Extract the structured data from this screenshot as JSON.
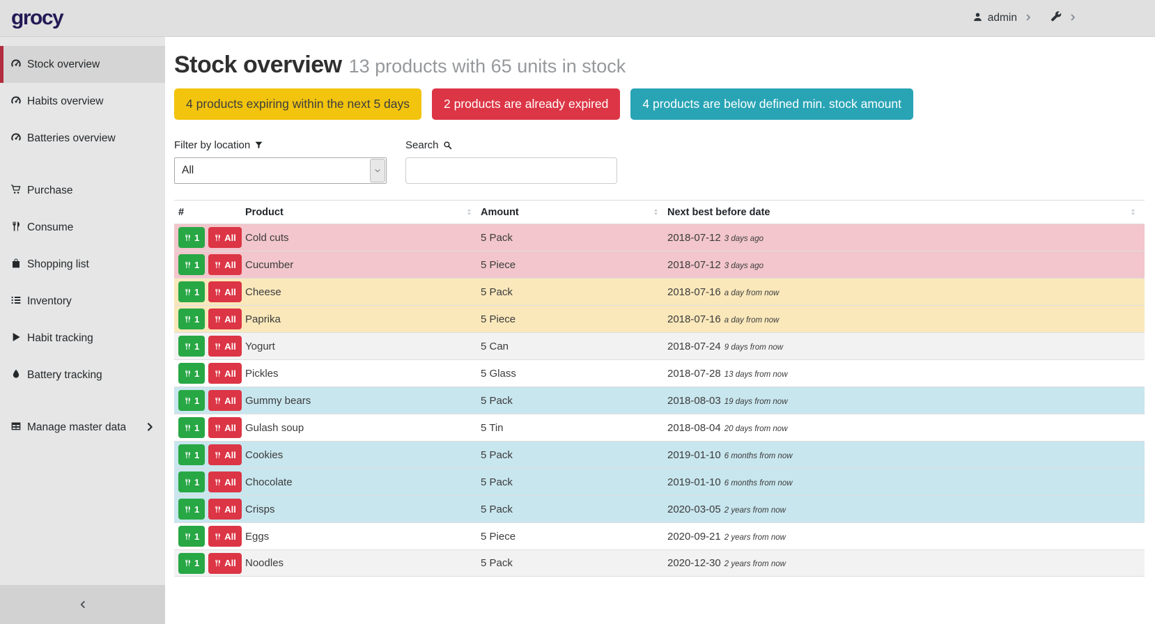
{
  "brand": {
    "logo": "grocy"
  },
  "header": {
    "user": "admin"
  },
  "sidebar": {
    "items": [
      {
        "label": "Stock overview",
        "icon": "tachometer-icon",
        "active": true
      },
      {
        "label": "Habits overview",
        "icon": "tachometer-icon"
      },
      {
        "label": "Batteries overview",
        "icon": "tachometer-icon"
      },
      {
        "divider": true
      },
      {
        "label": "Purchase",
        "icon": "cart-icon"
      },
      {
        "label": "Consume",
        "icon": "utensils-icon"
      },
      {
        "label": "Shopping list",
        "icon": "bag-icon"
      },
      {
        "label": "Inventory",
        "icon": "list-icon"
      },
      {
        "label": "Habit tracking",
        "icon": "play-icon"
      },
      {
        "label": "Battery tracking",
        "icon": "droplet-icon"
      },
      {
        "divider": true
      },
      {
        "label": "Manage master data",
        "icon": "table-icon",
        "chevron": true
      }
    ]
  },
  "page": {
    "title": "Stock overview",
    "subtitle": "13 products with 65 units in stock"
  },
  "alerts": [
    {
      "type": "warning",
      "text": "4 products expiring within the next 5 days"
    },
    {
      "type": "danger",
      "text": "2 products are already expired"
    },
    {
      "type": "info",
      "text": "4 products are below defined min. stock amount"
    }
  ],
  "filters": {
    "location_label": "Filter by location",
    "location_value": "All",
    "search_label": "Search",
    "search_value": ""
  },
  "table": {
    "columns": [
      "#",
      "Product",
      "Amount",
      "Next best before date"
    ],
    "consume_one_label": "1",
    "consume_all_label": "All",
    "rows": [
      {
        "product": "Cold cuts",
        "amount": "5 Pack",
        "date": "2018-07-12",
        "relative": "3 days ago",
        "highlight": "danger"
      },
      {
        "product": "Cucumber",
        "amount": "5 Piece",
        "date": "2018-07-12",
        "relative": "3 days ago",
        "highlight": "danger"
      },
      {
        "product": "Cheese",
        "amount": "5 Pack",
        "date": "2018-07-16",
        "relative": "a day from now",
        "highlight": "warning"
      },
      {
        "product": "Paprika",
        "amount": "5 Piece",
        "date": "2018-07-16",
        "relative": "a day from now",
        "highlight": "warning"
      },
      {
        "product": "Yogurt",
        "amount": "5 Can",
        "date": "2018-07-24",
        "relative": "9 days from now",
        "highlight": "none"
      },
      {
        "product": "Pickles",
        "amount": "5 Glass",
        "date": "2018-07-28",
        "relative": "13 days from now",
        "highlight": "none"
      },
      {
        "product": "Gummy bears",
        "amount": "5 Pack",
        "date": "2018-08-03",
        "relative": "19 days from now",
        "highlight": "info"
      },
      {
        "product": "Gulash soup",
        "amount": "5 Tin",
        "date": "2018-08-04",
        "relative": "20 days from now",
        "highlight": "none"
      },
      {
        "product": "Cookies",
        "amount": "5 Pack",
        "date": "2019-01-10",
        "relative": "6 months from now",
        "highlight": "info"
      },
      {
        "product": "Chocolate",
        "amount": "5 Pack",
        "date": "2019-01-10",
        "relative": "6 months from now",
        "highlight": "info"
      },
      {
        "product": "Crisps",
        "amount": "5 Pack",
        "date": "2020-03-05",
        "relative": "2 years from now",
        "highlight": "info"
      },
      {
        "product": "Eggs",
        "amount": "5 Piece",
        "date": "2020-09-21",
        "relative": "2 years from now",
        "highlight": "none"
      },
      {
        "product": "Noodles",
        "amount": "5 Pack",
        "date": "2020-12-30",
        "relative": "2 years from now",
        "highlight": "none"
      }
    ]
  },
  "colors": {
    "logo": "#241956",
    "topbar_bg": "#e0e0e0",
    "sidebar_bg": "#e6e6e6",
    "sidebar_active_bg": "#d5d5d5",
    "sidebar_active_accent": "#b22c3d",
    "sidebar_footer_bg": "#d2d2d2",
    "badge_warning_bg": "#f2c40d",
    "badge_warning_fg": "#3e3e3e",
    "badge_danger_bg": "#dc3545",
    "badge_danger_fg": "#ffffff",
    "badge_info_bg": "#28a4b5",
    "badge_info_fg": "#ffffff",
    "btn_green": "#28a745",
    "btn_red": "#dc3545",
    "row_danger": "#f2c6cc",
    "row_warning": "#fae8bb",
    "row_info": "#c8e6ee",
    "row_stripe": "#f2f2f2",
    "table_border": "#dddddd"
  }
}
